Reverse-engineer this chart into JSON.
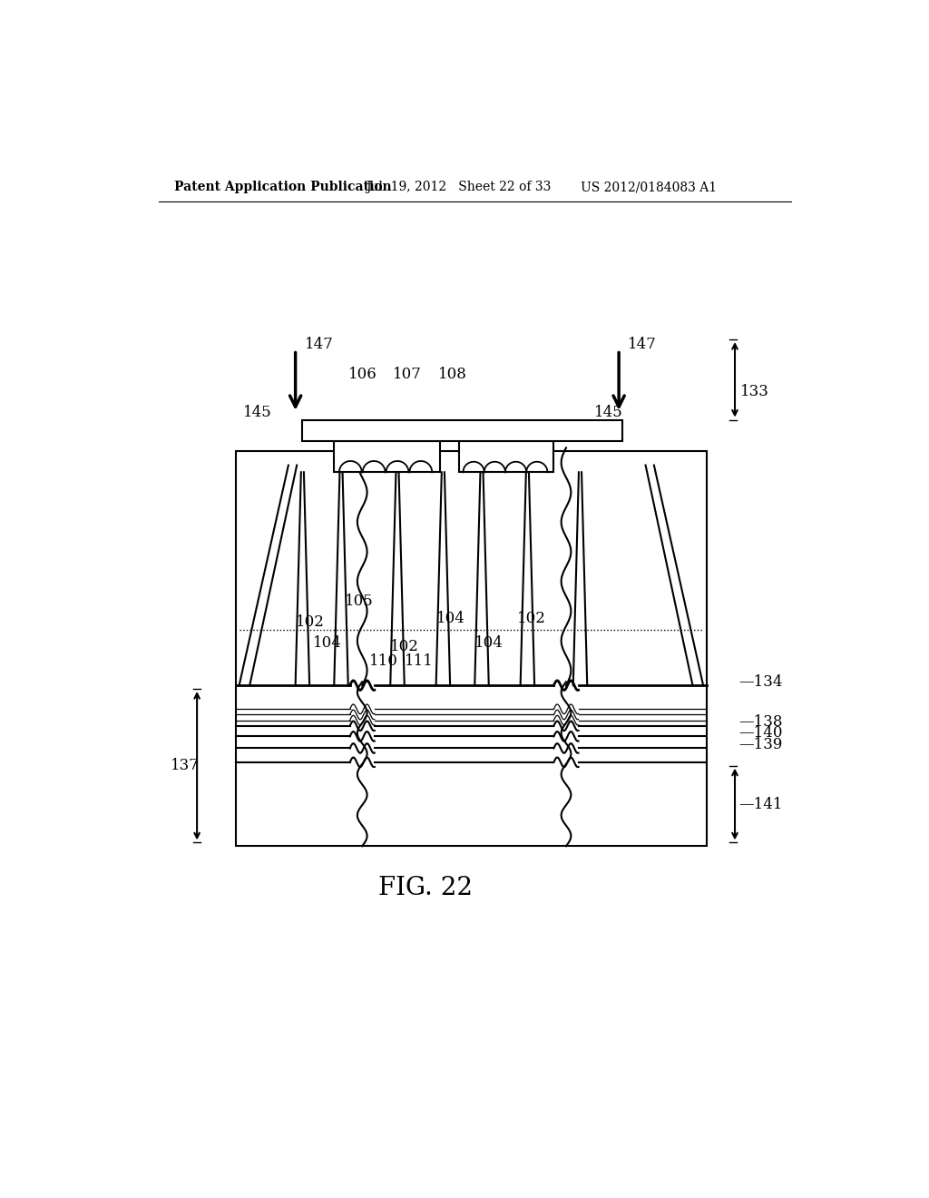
{
  "bg_color": "#ffffff",
  "line_color": "#000000",
  "header_left": "Patent Application Publication",
  "header_mid": "Jul. 19, 2012   Sheet 22 of 33",
  "header_right": "US 2012/0184083 A1",
  "fig_label": "FIG. 22",
  "labels": {
    "147": "147",
    "106": "106",
    "107": "107",
    "108": "108",
    "145": "145",
    "133": "133",
    "105": "105",
    "102": "102",
    "104": "104",
    "110": "110",
    "111": "111",
    "134": "134",
    "138": "138",
    "140": "140",
    "139": "139",
    "141": "141",
    "137": "137"
  }
}
